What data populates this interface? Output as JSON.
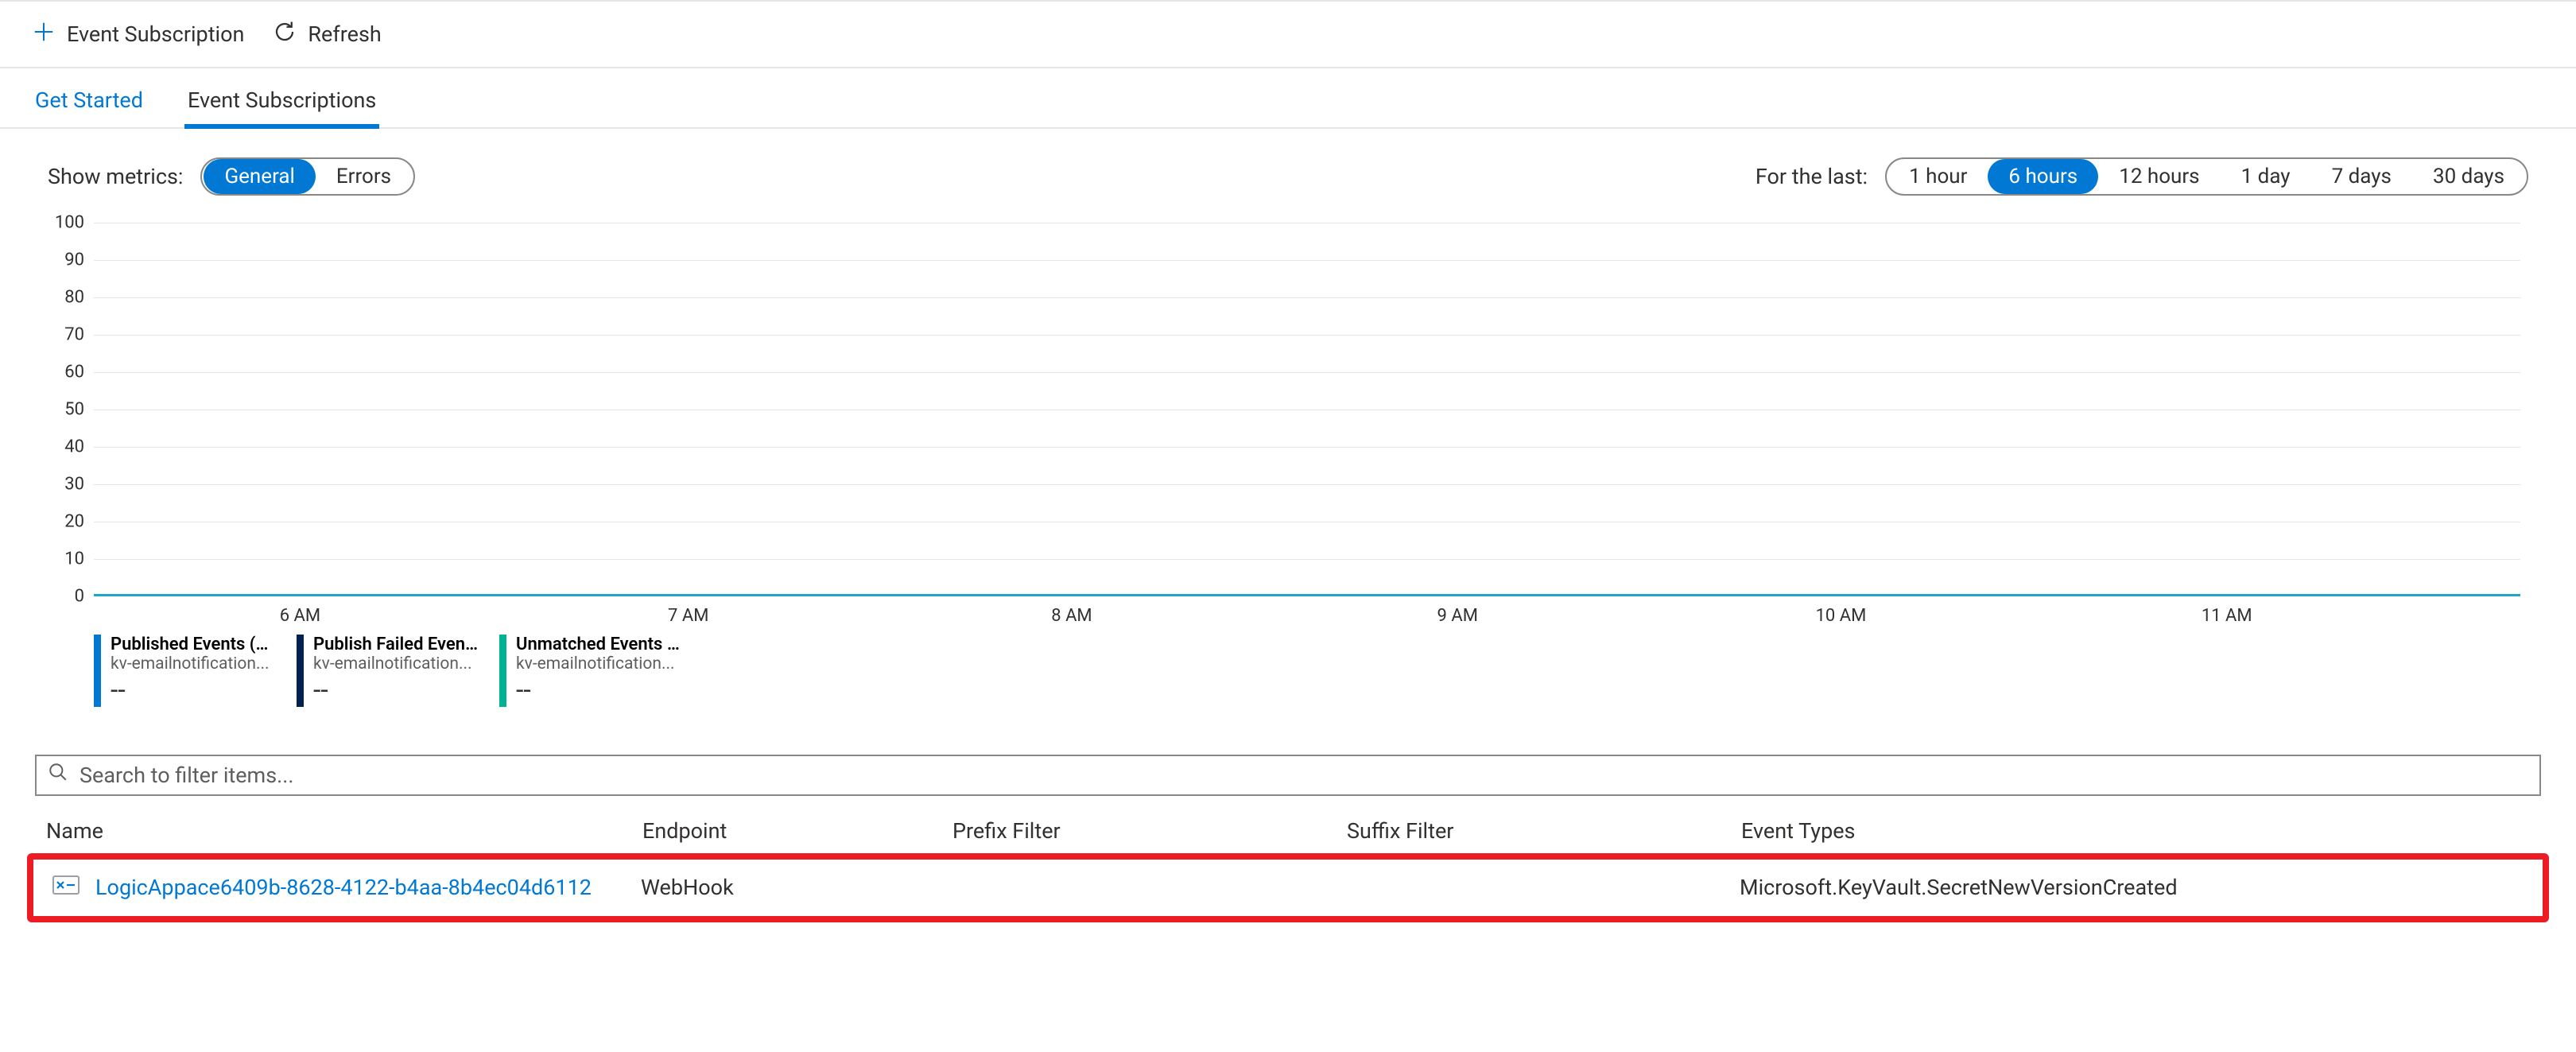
{
  "toolbar": {
    "event_subscription_label": "Event Subscription",
    "refresh_label": "Refresh"
  },
  "tabs": {
    "get_started": "Get Started",
    "event_subscriptions": "Event Subscriptions"
  },
  "metrics_bar": {
    "show_metrics_label": "Show metrics:",
    "metric_options": [
      "General",
      "Errors"
    ],
    "metric_selected_index": 0,
    "for_the_last_label": "For the last:",
    "time_options": [
      "1 hour",
      "6 hours",
      "12 hours",
      "1 day",
      "7 days",
      "30 days"
    ],
    "time_selected_index": 1
  },
  "chart": {
    "type": "line",
    "ylim": [
      0,
      100
    ],
    "ytick_step": 10,
    "y_ticks": [
      0,
      10,
      20,
      30,
      40,
      50,
      60,
      70,
      80,
      90,
      100
    ],
    "x_ticks": [
      "6 AM",
      "7 AM",
      "8 AM",
      "9 AM",
      "10 AM",
      "11 AM"
    ],
    "x_tick_positions_pct": [
      8.5,
      24.5,
      40.3,
      56.2,
      72.0,
      87.9
    ],
    "grid_color": "#e5e5e5",
    "axis_color": "#000000",
    "series": [
      {
        "title": "Published Events (Sum)",
        "sub": "kv-emailnotification...",
        "value": "--",
        "color": "#0078d4"
      },
      {
        "title": "Publish Failed Event...",
        "sub": "kv-emailnotification...",
        "value": "--",
        "color": "#002050"
      },
      {
        "title": "Unmatched Events (Sum)",
        "sub": "kv-emailnotification...",
        "value": "--",
        "color": "#00b294"
      }
    ],
    "flat_line_value": 0,
    "flat_line_color": "#1fa7c9"
  },
  "search": {
    "placeholder": "Search to filter items..."
  },
  "table": {
    "columns": {
      "name": "Name",
      "endpoint": "Endpoint",
      "prefix": "Prefix Filter",
      "suffix": "Suffix Filter",
      "event_types": "Event Types"
    },
    "rows": [
      {
        "name": "LogicAppace6409b-8628-4122-b4aa-8b4ec04d6112",
        "endpoint": "WebHook",
        "prefix": "",
        "suffix": "",
        "event_types": "Microsoft.KeyVault.SecretNewVersionCreated",
        "highlighted": true
      }
    ],
    "icon_color_frame": "#9aa0a6",
    "icon_color_accent": "#0078d4"
  },
  "colors": {
    "link": "#0078d4",
    "text": "#323130",
    "muted": "#605e5c",
    "border": "#e5e5e5",
    "pill_border": "#8a8886",
    "highlight": "#ed1c24"
  }
}
